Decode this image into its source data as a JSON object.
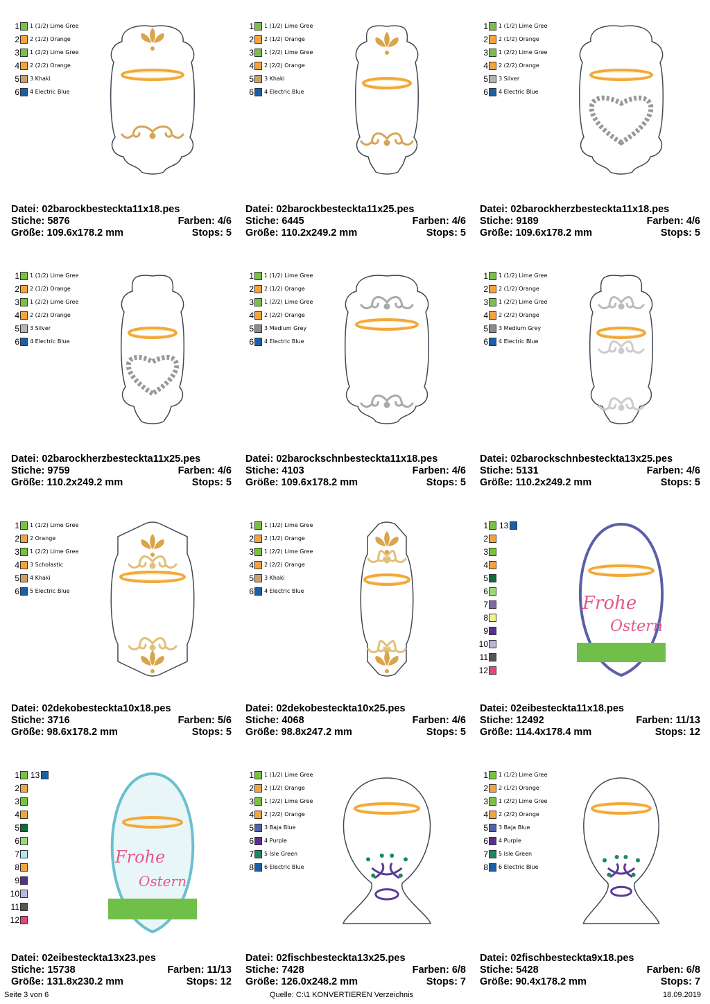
{
  "labels": {
    "file": "Datei:",
    "stitches": "Stiche:",
    "colors": "Farben:",
    "size": "Größe:",
    "stops": "Stops:"
  },
  "designs": [
    {
      "file": "02barockbesteckta11x18.pes",
      "stitches": "5876",
      "colors": "4/6",
      "size": "109.6x178.2 mm",
      "stops": "5",
      "legend": [
        {
          "num": "1",
          "color": "#7ac143",
          "name": "1 (1/2) Lime Gree"
        },
        {
          "num": "2",
          "color": "#f5a33c",
          "name": "2 (1/2) Orange"
        },
        {
          "num": "3",
          "color": "#7ac143",
          "name": "1 (2/2) Lime Gree"
        },
        {
          "num": "4",
          "color": "#f5a33c",
          "name": "2 (2/2) Orange"
        },
        {
          "num": "5",
          "color": "#c9a26b",
          "name": "3 Khaki"
        },
        {
          "num": "6",
          "color": "#1b5fa8",
          "name": "4 Electric Blue"
        }
      ]
    },
    {
      "file": "02barockbesteckta11x25.pes",
      "stitches": "6445",
      "colors": "4/6",
      "size": "110.2x249.2 mm",
      "stops": "5",
      "legend": [
        {
          "num": "1",
          "color": "#7ac143",
          "name": "1 (1/2) Lime Gree"
        },
        {
          "num": "2",
          "color": "#f5a33c",
          "name": "2 (1/2) Orange"
        },
        {
          "num": "3",
          "color": "#7ac143",
          "name": "1 (2/2) Lime Gree"
        },
        {
          "num": "4",
          "color": "#f5a33c",
          "name": "2 (2/2) Orange"
        },
        {
          "num": "5",
          "color": "#c9a26b",
          "name": "3 Khaki"
        },
        {
          "num": "6",
          "color": "#1b5fa8",
          "name": "4 Electric Blue"
        }
      ]
    },
    {
      "file": "02barockherzbesteckta11x18.pes",
      "stitches": "9189",
      "colors": "4/6",
      "size": "109.6x178.2 mm",
      "stops": "5",
      "legend": [
        {
          "num": "1",
          "color": "#7ac143",
          "name": "1 (1/2) Lime Gree"
        },
        {
          "num": "2",
          "color": "#f5a33c",
          "name": "2 (1/2) Orange"
        },
        {
          "num": "3",
          "color": "#7ac143",
          "name": "1 (2/2) Lime Gree"
        },
        {
          "num": "4",
          "color": "#f5a33c",
          "name": "2 (2/2) Orange"
        },
        {
          "num": "5",
          "color": "#b5b5b5",
          "name": "3 Silver"
        },
        {
          "num": "6",
          "color": "#1b5fa8",
          "name": "4 Electric Blue"
        }
      ]
    },
    {
      "file": "02barockherzbesteckta11x25.pes",
      "stitches": "9759",
      "colors": "4/6",
      "size": "110.2x249.2 mm",
      "stops": "5",
      "legend": [
        {
          "num": "1",
          "color": "#7ac143",
          "name": "1 (1/2) Lime Gree"
        },
        {
          "num": "2",
          "color": "#f5a33c",
          "name": "2 (1/2) Orange"
        },
        {
          "num": "3",
          "color": "#7ac143",
          "name": "1 (2/2) Lime Gree"
        },
        {
          "num": "4",
          "color": "#f5a33c",
          "name": "2 (2/2) Orange"
        },
        {
          "num": "5",
          "color": "#b5b5b5",
          "name": "3 Silver"
        },
        {
          "num": "6",
          "color": "#1b5fa8",
          "name": "4 Electric Blue"
        }
      ]
    },
    {
      "file": "02barockschnbesteckta11x18.pes",
      "stitches": "4103",
      "colors": "4/6",
      "size": "109.6x178.2 mm",
      "stops": "5",
      "legend": [
        {
          "num": "1",
          "color": "#7ac143",
          "name": "1 (1/2) Lime Gree"
        },
        {
          "num": "2",
          "color": "#f5a33c",
          "name": "2 (1/2) Orange"
        },
        {
          "num": "3",
          "color": "#7ac143",
          "name": "1 (2/2) Lime Gree"
        },
        {
          "num": "4",
          "color": "#f5a33c",
          "name": "2 (2/2) Orange"
        },
        {
          "num": "5",
          "color": "#8c8c8c",
          "name": "3 Medium Grey"
        },
        {
          "num": "6",
          "color": "#1b5fa8",
          "name": "4 Electric Blue"
        }
      ]
    },
    {
      "file": "02barockschnbesteckta13x25.pes",
      "stitches": "5131",
      "colors": "4/6",
      "size": "110.2x249.2 mm",
      "stops": "5",
      "legend": [
        {
          "num": "1",
          "color": "#7ac143",
          "name": "1 (1/2) Lime Gree"
        },
        {
          "num": "2",
          "color": "#f5a33c",
          "name": "2 (1/2) Orange"
        },
        {
          "num": "3",
          "color": "#7ac143",
          "name": "1 (2/2) Lime Gree"
        },
        {
          "num": "4",
          "color": "#f5a33c",
          "name": "2 (2/2) Orange"
        },
        {
          "num": "5",
          "color": "#8c8c8c",
          "name": "3 Medium Grey"
        },
        {
          "num": "6",
          "color": "#1b5fa8",
          "name": "4 Electric Blue"
        }
      ]
    },
    {
      "file": "02dekobesteckta10x18.pes",
      "stitches": "3716",
      "colors": "5/6",
      "size": "98.6x178.2 mm",
      "stops": "5",
      "legend": [
        {
          "num": "1",
          "color": "#7ac143",
          "name": "1 (1/2) Lime Gree"
        },
        {
          "num": "2",
          "color": "#f5a33c",
          "name": "2 Orange"
        },
        {
          "num": "3",
          "color": "#7ac143",
          "name": "1 (2/2) Lime Gree"
        },
        {
          "num": "4",
          "color": "#f5a33c",
          "name": "3 Scholastic"
        },
        {
          "num": "5",
          "color": "#c9a26b",
          "name": "4 Khaki"
        },
        {
          "num": "6",
          "color": "#1b5fa8",
          "name": "5 Electric Blue"
        }
      ]
    },
    {
      "file": "02dekobesteckta10x25.pes",
      "stitches": "4068",
      "colors": "4/6",
      "size": "98.8x247.2 mm",
      "stops": "5",
      "legend": [
        {
          "num": "1",
          "color": "#7ac143",
          "name": "1 (1/2) Lime Gree"
        },
        {
          "num": "2",
          "color": "#f5a33c",
          "name": "2 (1/2) Orange"
        },
        {
          "num": "3",
          "color": "#7ac143",
          "name": "1 (2/2) Lime Gree"
        },
        {
          "num": "4",
          "color": "#f5a33c",
          "name": "2 (2/2) Orange"
        },
        {
          "num": "5",
          "color": "#c9a26b",
          "name": "3 Khaki"
        },
        {
          "num": "6",
          "color": "#1b5fa8",
          "name": "4 Electric Blue"
        }
      ]
    },
    {
      "file": "02eibesteckta11x18.pes",
      "stitches": "12492",
      "colors": "11/13",
      "size": "114.4x178.4 mm",
      "stops": "12",
      "extra": {
        "num": "13",
        "color": "#1b5fa8"
      },
      "legend": [
        {
          "num": "1",
          "color": "#7ac143",
          "name": ""
        },
        {
          "num": "2",
          "color": "#f5a33c",
          "name": ""
        },
        {
          "num": "3",
          "color": "#7ac143",
          "name": ""
        },
        {
          "num": "4",
          "color": "#f5a33c",
          "name": ""
        },
        {
          "num": "5",
          "color": "#0e6b3a",
          "name": ""
        },
        {
          "num": "6",
          "color": "#9ed67e",
          "name": ""
        },
        {
          "num": "7",
          "color": "#7b6aa8",
          "name": ""
        },
        {
          "num": "8",
          "color": "#f2f58a",
          "name": ""
        },
        {
          "num": "9",
          "color": "#5a2d91",
          "name": ""
        },
        {
          "num": "10",
          "color": "#b9b6dc",
          "name": ""
        },
        {
          "num": "11",
          "color": "#555555",
          "name": ""
        },
        {
          "num": "12",
          "color": "#e8437e",
          "name": ""
        }
      ]
    },
    {
      "file": "02eibesteckta13x23.pes",
      "stitches": "15738",
      "colors": "11/13",
      "size": "131.8x230.2 mm",
      "stops": "12",
      "extra": {
        "num": "13",
        "color": "#1b5fa8"
      },
      "legend": [
        {
          "num": "1",
          "color": "#7ac143",
          "name": ""
        },
        {
          "num": "2",
          "color": "#f5a33c",
          "name": ""
        },
        {
          "num": "3",
          "color": "#7ac143",
          "name": ""
        },
        {
          "num": "4",
          "color": "#f5a33c",
          "name": ""
        },
        {
          "num": "5",
          "color": "#0e6b3a",
          "name": ""
        },
        {
          "num": "6",
          "color": "#9ed67e",
          "name": ""
        },
        {
          "num": "7",
          "color": "#b6e4ee",
          "name": ""
        },
        {
          "num": "8",
          "color": "#f5a33c",
          "name": ""
        },
        {
          "num": "9",
          "color": "#5a2d91",
          "name": ""
        },
        {
          "num": "10",
          "color": "#b9b6dc",
          "name": ""
        },
        {
          "num": "11",
          "color": "#555555",
          "name": ""
        },
        {
          "num": "12",
          "color": "#e8437e",
          "name": ""
        }
      ]
    },
    {
      "file": "02fischbesteckta13x25.pes",
      "stitches": "7428",
      "colors": "6/8",
      "size": "126.0x248.2 mm",
      "stops": "7",
      "legend": [
        {
          "num": "1",
          "color": "#7ac143",
          "name": "1 (1/2) Lime Gree"
        },
        {
          "num": "2",
          "color": "#f5a33c",
          "name": "2 (1/2) Orange"
        },
        {
          "num": "3",
          "color": "#7ac143",
          "name": "1 (2/2) Lime Gree"
        },
        {
          "num": "4",
          "color": "#f5a33c",
          "name": "2 (2/2) Orange"
        },
        {
          "num": "5",
          "color": "#5560a8",
          "name": "3 Baja Blue"
        },
        {
          "num": "6",
          "color": "#5a2d91",
          "name": "4 Purple"
        },
        {
          "num": "7",
          "color": "#1a8a5a",
          "name": "5 Isle Green"
        },
        {
          "num": "8",
          "color": "#1b5fa8",
          "name": "6 Electric Blue"
        }
      ]
    },
    {
      "file": "02fischbesteckta9x18.pes",
      "stitches": "5428",
      "colors": "6/8",
      "size": "90.4x178.2 mm",
      "stops": "7",
      "legend": [
        {
          "num": "1",
          "color": "#7ac143",
          "name": "1 (1/2) Lime Gree"
        },
        {
          "num": "2",
          "color": "#f5a33c",
          "name": "2 (1/2) Orange"
        },
        {
          "num": "3",
          "color": "#7ac143",
          "name": "1 (2/2) Lime Gree"
        },
        {
          "num": "4",
          "color": "#f5a33c",
          "name": "2 (2/2) Orange"
        },
        {
          "num": "5",
          "color": "#5560a8",
          "name": "3 Baja Blue"
        },
        {
          "num": "6",
          "color": "#5a2d91",
          "name": "4 Purple"
        },
        {
          "num": "7",
          "color": "#1a8a5a",
          "name": "5 Isle Green"
        },
        {
          "num": "8",
          "color": "#1b5fa8",
          "name": "6 Electric Blue"
        }
      ]
    }
  ],
  "easter_text": {
    "line1": "Frohe",
    "line2": "Ostern"
  },
  "footer": {
    "page": "Seite 3 von 6",
    "source": "Quelle: C:\\1 KONVERTIEREN Verzeichnis",
    "date": "18.09.2019"
  }
}
